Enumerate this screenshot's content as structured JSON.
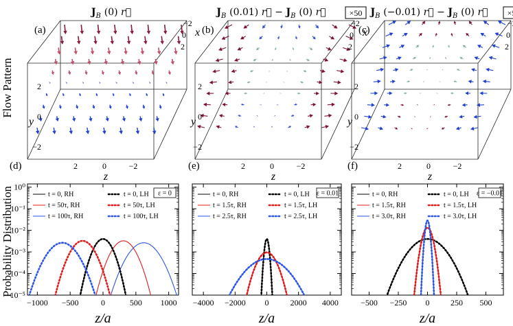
{
  "figure": {
    "row_labels": {
      "top": "Flow Pattern",
      "bottom": "Probability Distribution"
    },
    "top_panels": [
      {
        "label": "(a)",
        "title": "J_B (0) r",
        "badge": "",
        "axes": {
          "x": "x",
          "y": "y",
          "z": "z"
        },
        "x_ticks": [
          "−2",
          "0",
          "2"
        ],
        "y_ticks": [
          "2",
          "0",
          "−2"
        ],
        "z_ticks": [
          "2",
          "0",
          "−2"
        ],
        "palette": [
          "#8a1a3a",
          "#c0506a",
          "#1e3fd0"
        ]
      },
      {
        "label": "(b)",
        "title": "J_B (0.01) r − J_B (0) r",
        "badge": "×50",
        "axes": {
          "x": "x",
          "y": "y",
          "z": "z"
        },
        "x_ticks": [
          "−2",
          "0",
          "2"
        ],
        "y_ticks": [
          "2",
          "0",
          "−2"
        ],
        "z_ticks": [
          "2",
          "0",
          "−2"
        ],
        "palette": [
          "#7a1430",
          "#3050d0",
          "#7fae9a"
        ]
      },
      {
        "label": "(c)",
        "title": "J_B (−0.01) r − J_B (0) r",
        "badge": "×50",
        "axes": {
          "x": "x",
          "y": "y",
          "z": "z"
        },
        "x_ticks": [
          "−2",
          "0",
          "2"
        ],
        "y_ticks": [
          "2",
          "0",
          "−2"
        ],
        "z_ticks": [
          "2",
          "0",
          "−2"
        ],
        "palette": [
          "#1e3fd0",
          "#7a1430",
          "#7fae9a"
        ]
      }
    ],
    "colors": {
      "rh0": "#000000",
      "rh1": "#e11919",
      "rh2": "#2a55e6"
    }
  },
  "chart_data": [
    {
      "type": "line",
      "label": "(d)",
      "epsilon": "ε = 0",
      "xlabel": "z/a",
      "ylabel": "Probability Distribution",
      "xlim": [
        -1150,
        1150
      ],
      "ylim_log10": [
        -5,
        0.15
      ],
      "x_ticks": [
        -1000,
        -500,
        0,
        500,
        1000
      ],
      "x_tick_labels": [
        "−1000",
        "−500",
        "0",
        "500",
        "1000"
      ],
      "y_ticks_log10": [
        -5,
        -4,
        -3,
        -2,
        -1,
        0
      ],
      "y_tick_labels": [
        "10⁻⁵",
        "10⁻⁴",
        "10⁻³",
        "10⁻²",
        "10⁻¹",
        "10⁰"
      ],
      "series": [
        {
          "name": "t = 0, RH",
          "style": "solid",
          "color": "#000000",
          "mu": 0,
          "sigma": 100
        },
        {
          "name": "t = 50τ, RH",
          "style": "solid",
          "color": "#e11919",
          "mu": 310,
          "sigma": 122
        },
        {
          "name": "t = 100τ, RH",
          "style": "solid",
          "color": "#2a55e6",
          "mu": 620,
          "sigma": 150
        },
        {
          "name": "t = 0, LH",
          "style": "dotted",
          "color": "#000000",
          "mu": 0,
          "sigma": 100
        },
        {
          "name": "t = 50τ, LH",
          "style": "dotted",
          "color": "#e11919",
          "mu": -310,
          "sigma": 122
        },
        {
          "name": "t = 100τ, LH",
          "style": "dotted",
          "color": "#2a55e6",
          "mu": -620,
          "sigma": 150
        }
      ]
    },
    {
      "type": "line",
      "label": "(e)",
      "epsilon": "ε = 0.01",
      "xlabel": "z/a",
      "ylabel": "",
      "xlim": [
        -4700,
        4700
      ],
      "ylim_log10": [
        -5,
        0.15
      ],
      "x_ticks": [
        -4000,
        -2000,
        0,
        2000,
        4000
      ],
      "x_tick_labels": [
        "−4000",
        "−2000",
        "0",
        "2000",
        "4000"
      ],
      "y_ticks_log10": [
        -5,
        -4,
        -3,
        -2,
        -1,
        0
      ],
      "y_tick_labels": [],
      "series": [
        {
          "name": "t = 0, RH",
          "style": "solid",
          "color": "#000000",
          "mu": 0,
          "sigma": 100
        },
        {
          "name": "t = 1.5τ, RH",
          "style": "solid",
          "color": "#e11919",
          "mu": 0,
          "sigma": 420
        },
        {
          "name": "t = 2.5τ, RH",
          "style": "solid",
          "color": "#2a55e6",
          "mu": 0,
          "sigma": 850
        },
        {
          "name": "t = 0, LH",
          "style": "dotted",
          "color": "#000000",
          "mu": 0,
          "sigma": 100
        },
        {
          "name": "t = 1.5τ, LH",
          "style": "dotted",
          "color": "#e11919",
          "mu": 0,
          "sigma": 420
        },
        {
          "name": "t = 2.5τ, LH",
          "style": "dotted",
          "color": "#2a55e6",
          "mu": 0,
          "sigma": 850
        }
      ]
    },
    {
      "type": "line",
      "label": "(f)",
      "epsilon": "ε = −0.01",
      "xlabel": "z/a",
      "ylabel": "",
      "xlim": [
        -650,
        650
      ],
      "ylim_log10": [
        -5,
        0.15
      ],
      "x_ticks": [
        -500,
        -250,
        0,
        250,
        500
      ],
      "x_tick_labels": [
        "−500",
        "−250",
        "0",
        "250",
        "500"
      ],
      "y_ticks_log10": [
        -5,
        -4,
        -3,
        -2,
        -1,
        0
      ],
      "y_tick_labels": [],
      "series": [
        {
          "name": "t = 0, RH",
          "style": "solid",
          "color": "#000000",
          "mu": 0,
          "sigma": 100
        },
        {
          "name": "t = 1.5τ, RH",
          "style": "solid",
          "color": "#e11919",
          "mu": 0,
          "sigma": 30
        },
        {
          "name": "t = 3.0τ, RH",
          "style": "solid",
          "color": "#2a55e6",
          "mu": 0,
          "sigma": 14
        },
        {
          "name": "t = 0, LH",
          "style": "dotted",
          "color": "#000000",
          "mu": 0,
          "sigma": 100
        },
        {
          "name": "t = 1.5τ, LH",
          "style": "dotted",
          "color": "#e11919",
          "mu": 0,
          "sigma": 30
        },
        {
          "name": "t = 3.0τ, LH",
          "style": "dotted",
          "color": "#2a55e6",
          "mu": 0,
          "sigma": 14
        }
      ]
    }
  ]
}
